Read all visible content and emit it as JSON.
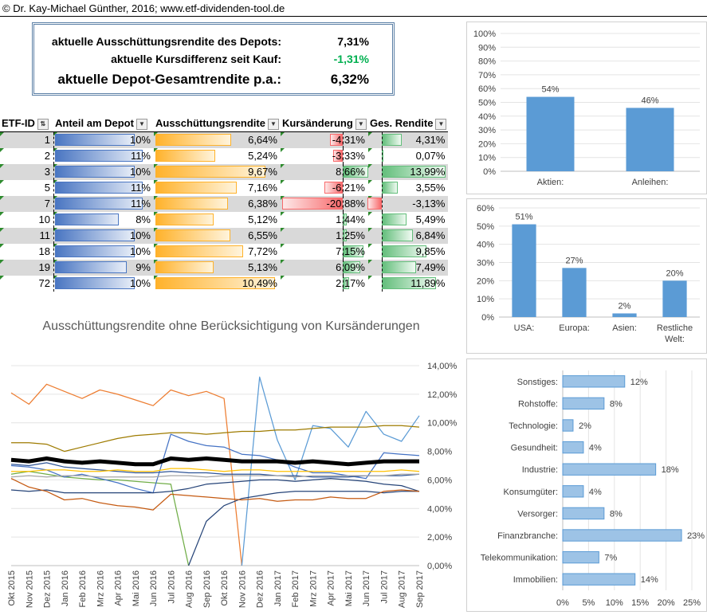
{
  "header": {
    "text": "© Dr. Kay-Michael Günther, 2016; www.etf-dividenden-tool.de"
  },
  "summary": {
    "row1_label": "aktuelle Ausschüttungsrendite des Depots:",
    "row1_value": "7,31%",
    "row2_label": "aktuelle Kursdifferenz seit Kauf:",
    "row2_value": "-1,31%",
    "row3_label": "aktuelle Depot-Gesamtrendite p.a.:",
    "row3_value": "6,32%",
    "negative_color": "#00b050"
  },
  "table": {
    "headers": [
      "ETF-ID",
      "Anteil am Depot",
      "Ausschüttungsrendite",
      "Kursänderung",
      "Ges. Rendite"
    ],
    "rows": [
      {
        "id": "1",
        "anteil": "10%",
        "anteil_v": 10,
        "aus": "6,64%",
        "aus_v": 6.64,
        "kurs": "-4,31%",
        "kurs_v": -4.31,
        "ges": "4,31%",
        "ges_v": 4.31
      },
      {
        "id": "2",
        "anteil": "11%",
        "anteil_v": 11,
        "aus": "5,24%",
        "aus_v": 5.24,
        "kurs": "-3,33%",
        "kurs_v": -3.33,
        "ges": "0,07%",
        "ges_v": 0.07
      },
      {
        "id": "3",
        "anteil": "10%",
        "anteil_v": 10,
        "aus": "9,67%",
        "aus_v": 9.67,
        "kurs": "8,66%",
        "kurs_v": 8.66,
        "ges": "13,99%",
        "ges_v": 13.99
      },
      {
        "id": "5",
        "anteil": "11%",
        "anteil_v": 11,
        "aus": "7,16%",
        "aus_v": 7.16,
        "kurs": "-6,21%",
        "kurs_v": -6.21,
        "ges": "3,55%",
        "ges_v": 3.55
      },
      {
        "id": "7",
        "anteil": "11%",
        "anteil_v": 11,
        "aus": "6,38%",
        "aus_v": 6.38,
        "kurs": "-20,88%",
        "kurs_v": -20.88,
        "ges": "-3,13%",
        "ges_v": -3.13
      },
      {
        "id": "10",
        "anteil": "8%",
        "anteil_v": 8,
        "aus": "5,12%",
        "aus_v": 5.12,
        "kurs": "1,44%",
        "kurs_v": 1.44,
        "ges": "5,49%",
        "ges_v": 5.49
      },
      {
        "id": "11",
        "anteil": "10%",
        "anteil_v": 10,
        "aus": "6,55%",
        "aus_v": 6.55,
        "kurs": "1,25%",
        "kurs_v": 1.25,
        "ges": "6,84%",
        "ges_v": 6.84
      },
      {
        "id": "18",
        "anteil": "10%",
        "anteil_v": 10,
        "aus": "7,72%",
        "aus_v": 7.72,
        "kurs": "7,15%",
        "kurs_v": 7.15,
        "ges": "9,85%",
        "ges_v": 9.85
      },
      {
        "id": "19",
        "anteil": "9%",
        "anteil_v": 9,
        "aus": "5,13%",
        "aus_v": 5.13,
        "kurs": "6,09%",
        "kurs_v": 6.09,
        "ges": "7,49%",
        "ges_v": 7.49
      },
      {
        "id": "72",
        "anteil": "10%",
        "anteil_v": 10,
        "aus": "10,49%",
        "aus_v": 10.49,
        "kurs": "2,17%",
        "kurs_v": 2.17,
        "ges": "11,89%",
        "ges_v": 11.89
      }
    ]
  },
  "chart_data": [
    {
      "type": "bar",
      "categories": [
        "Aktien:",
        "Anleihen:"
      ],
      "values": [
        54,
        46
      ],
      "value_labels": [
        "54%",
        "46%"
      ],
      "ylim": [
        0,
        100
      ],
      "yticks": [
        "0%",
        "10%",
        "20%",
        "30%",
        "40%",
        "50%",
        "60%",
        "70%",
        "80%",
        "90%",
        "100%"
      ],
      "color": "#5b9bd5"
    },
    {
      "type": "bar",
      "categories": [
        "USA:",
        "Europa:",
        "Asien:",
        "Restliche Welt:"
      ],
      "values": [
        51,
        27,
        2,
        20
      ],
      "value_labels": [
        "51%",
        "27%",
        "2%",
        "20%"
      ],
      "ylim": [
        0,
        60
      ],
      "yticks": [
        "0%",
        "10%",
        "20%",
        "30%",
        "40%",
        "50%",
        "60%"
      ],
      "color": "#5b9bd5"
    },
    {
      "type": "bar",
      "orientation": "horizontal",
      "categories": [
        "Sonstiges:",
        "Rohstoffe:",
        "Technologie:",
        "Gesundheit:",
        "Industrie:",
        "Konsumgüter:",
        "Versorger:",
        "Finanzbranche:",
        "Telekommunikation:",
        "Immobilien:"
      ],
      "values": [
        12,
        8,
        2,
        4,
        18,
        4,
        8,
        23,
        7,
        14
      ],
      "value_labels": [
        "12%",
        "8%",
        "2%",
        "4%",
        "18%",
        "4%",
        "8%",
        "23%",
        "7%",
        "14%"
      ],
      "xlim": [
        0,
        25
      ],
      "xticks": [
        "0%",
        "5%",
        "10%",
        "15%",
        "20%",
        "25%"
      ],
      "color": "#9dc3e6"
    },
    {
      "type": "line",
      "title": "Ausschüttungsrendite ohne Berücksichtigung von Kursänderungen",
      "x": [
        "Okt 2015",
        "Nov 2015",
        "Dez 2015",
        "Jan 2016",
        "Feb 2016",
        "Mrz 2016",
        "Apr 2016",
        "Mai 2016",
        "Jun 2016",
        "Jul 2016",
        "Aug 2016",
        "Sep 2016",
        "Okt 2016",
        "Nov 2016",
        "Dez 2016",
        "Jan 2017",
        "Feb 2017",
        "Mrz 2017",
        "Apr 2017",
        "Mai 2017",
        "Jun 2017",
        "Jul 2017",
        "Aug 2017",
        "Sep 2017"
      ],
      "ylim": [
        0,
        14
      ],
      "yticks": [
        "0,00%",
        "2,00%",
        "4,00%",
        "6,00%",
        "8,00%",
        "10,00%",
        "12,00%",
        "14,00%"
      ],
      "series": [
        {
          "color": "#ed7d31",
          "values": [
            12.1,
            11.3,
            12.7,
            12.2,
            11.7,
            12.3,
            12.0,
            11.6,
            11.2,
            12.3,
            11.9,
            12.2,
            11.7,
            0,
            null,
            null,
            null,
            null,
            null,
            null,
            null,
            null,
            null,
            null
          ]
        },
        {
          "color": "#5b9bd5",
          "values": [
            null,
            null,
            null,
            null,
            null,
            null,
            null,
            null,
            null,
            null,
            null,
            null,
            null,
            0,
            13.2,
            8.8,
            6.0,
            9.8,
            9.6,
            8.3,
            10.8,
            9.2,
            8.7,
            10.5
          ]
        },
        {
          "color": "#9e7b00",
          "values": [
            8.6,
            8.6,
            8.5,
            8.0,
            8.3,
            8.6,
            8.9,
            9.1,
            9.2,
            9.3,
            9.3,
            9.2,
            9.3,
            9.4,
            9.4,
            9.5,
            9.5,
            9.6,
            9.7,
            9.7,
            9.7,
            9.8,
            9.8,
            9.7
          ]
        },
        {
          "color": "#70ad47",
          "values": [
            6.4,
            6.6,
            6.4,
            6.2,
            6.1,
            6.0,
            6.0,
            5.9,
            5.8,
            5.7,
            0,
            null,
            null,
            null,
            null,
            null,
            null,
            null,
            null,
            null,
            null,
            null,
            null,
            null
          ]
        },
        {
          "color": "#264478",
          "values": [
            null,
            null,
            null,
            null,
            null,
            null,
            null,
            null,
            null,
            null,
            0,
            3.1,
            4.2,
            4.7,
            4.9,
            5.1,
            5.2,
            5.2,
            5.2,
            5.2,
            5.2,
            5.1,
            5.2,
            5.2
          ]
        },
        {
          "color": "#4472c4",
          "values": [
            7.0,
            6.9,
            6.7,
            6.2,
            6.4,
            6.1,
            5.8,
            5.4,
            5.1,
            9.2,
            8.7,
            8.4,
            8.3,
            7.8,
            7.7,
            7.4,
            6.9,
            6.5,
            6.5,
            6.3,
            6.1,
            7.9,
            7.8,
            7.7
          ]
        },
        {
          "color": "#2f5597",
          "values": [
            7.1,
            7.0,
            7.2,
            6.9,
            6.8,
            6.7,
            6.6,
            6.5,
            6.5,
            6.6,
            6.5,
            6.5,
            6.4,
            6.4,
            6.4,
            6.3,
            6.3,
            6.2,
            6.2,
            6.2,
            6.3,
            6.3,
            6.3,
            6.4
          ]
        },
        {
          "color": "#ffc000",
          "values": [
            6.6,
            6.6,
            6.7,
            6.7,
            6.6,
            6.6,
            6.7,
            6.6,
            6.6,
            6.8,
            6.8,
            6.7,
            6.6,
            6.7,
            6.7,
            6.6,
            6.6,
            6.6,
            6.6,
            6.6,
            6.6,
            6.6,
            6.7,
            6.6
          ]
        },
        {
          "color": "#a5a5a5",
          "values": [
            6.2,
            6.3,
            6.2,
            6.3,
            6.3,
            6.2,
            6.2,
            6.2,
            6.2,
            6.3,
            6.3,
            6.2,
            6.3,
            6.3,
            6.3,
            6.3,
            6.2,
            6.3,
            6.3,
            6.3,
            6.3,
            6.3,
            6.4,
            6.4
          ]
        },
        {
          "color": "#264478",
          "values": [
            5.3,
            5.2,
            5.3,
            5.1,
            5.1,
            5.1,
            5.1,
            5.1,
            5.1,
            5.2,
            5.4,
            5.7,
            5.8,
            5.9,
            6.0,
            6.0,
            5.9,
            6.0,
            6.1,
            6.0,
            5.9,
            5.7,
            5.6,
            5.2
          ]
        },
        {
          "color": "#c55a11",
          "values": [
            6.1,
            5.5,
            5.2,
            4.6,
            4.7,
            4.4,
            4.2,
            4.1,
            3.9,
            5.0,
            4.9,
            4.8,
            4.7,
            4.6,
            4.7,
            4.5,
            4.6,
            4.6,
            4.8,
            4.7,
            4.7,
            5.2,
            5.3,
            5.2
          ]
        },
        {
          "color": "#000000",
          "width": 5,
          "values": [
            7.4,
            7.3,
            7.5,
            7.3,
            7.2,
            7.3,
            7.2,
            7.1,
            7.1,
            7.5,
            7.4,
            7.5,
            7.4,
            7.3,
            7.3,
            7.3,
            7.2,
            7.3,
            7.2,
            7.1,
            7.2,
            7.3,
            7.3,
            7.3
          ]
        }
      ]
    }
  ]
}
